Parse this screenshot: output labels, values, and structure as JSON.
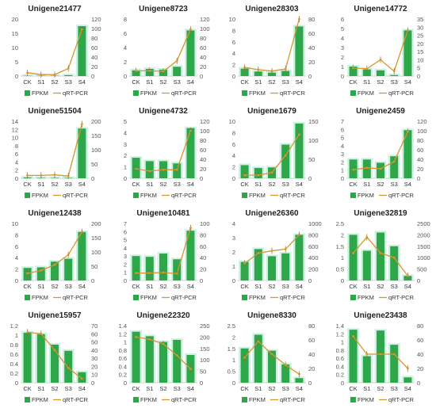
{
  "colors": {
    "bar": "#2ea64a",
    "bar_glow": "#c7eedd",
    "line": "#d9952e"
  },
  "legend": {
    "bar_label": "FPKM",
    "line_label": "qRT-PCR"
  },
  "chart_data": [
    {
      "type": "bar+line",
      "title": "Unigene21477",
      "categories": [
        "CK",
        "S1",
        "S2",
        "S3",
        "S4"
      ],
      "series": [
        {
          "name": "FPKM",
          "axis": "left",
          "values": [
            0.1,
            0.1,
            0.1,
            0.3,
            17.5
          ]
        },
        {
          "name": "qRT-PCR",
          "axis": "right",
          "values": [
            7,
            3,
            3,
            16,
            98
          ]
        }
      ],
      "left_ylim": [
        0,
        20
      ],
      "left_ticks": [
        0,
        5,
        10,
        15,
        20
      ],
      "right_ylim": [
        0,
        120
      ],
      "right_ticks": [
        0,
        20,
        40,
        60,
        80,
        100,
        120
      ]
    },
    {
      "type": "bar+line",
      "title": "Unigene8723",
      "categories": [
        "CK",
        "S1",
        "S2",
        "S3",
        "S4"
      ],
      "series": [
        {
          "name": "FPKM",
          "axis": "left",
          "values": [
            0.8,
            1.0,
            0.9,
            1.3,
            6.4
          ]
        },
        {
          "name": "qRT-PCR",
          "axis": "right",
          "values": [
            11,
            11,
            10,
            32,
            98
          ]
        }
      ],
      "left_ylim": [
        0,
        8
      ],
      "left_ticks": [
        0,
        2,
        4,
        6,
        8
      ],
      "right_ylim": [
        0,
        120
      ],
      "right_ticks": [
        0,
        20,
        40,
        60,
        80,
        100,
        120
      ]
    },
    {
      "type": "bar+line",
      "title": "Unigene28303",
      "categories": [
        "CK",
        "S1",
        "S2",
        "S3",
        "S4"
      ],
      "series": [
        {
          "name": "FPKM",
          "axis": "left",
          "values": [
            1.3,
            0.8,
            0.6,
            0.9,
            8.7
          ]
        },
        {
          "name": "qRT-PCR",
          "axis": "right",
          "values": [
            12,
            9,
            7,
            10,
            80
          ]
        }
      ],
      "left_ylim": [
        0,
        10
      ],
      "left_ticks": [
        0,
        2,
        4,
        6,
        8,
        10
      ],
      "right_ylim": [
        0,
        80
      ],
      "right_ticks": [
        0,
        20,
        40,
        60,
        80
      ]
    },
    {
      "type": "bar+line",
      "title": "Unigene14772",
      "categories": [
        "CK",
        "S1",
        "S2",
        "S3",
        "S4"
      ],
      "series": [
        {
          "name": "FPKM",
          "axis": "left",
          "values": [
            1.0,
            0.7,
            0.6,
            0.1,
            4.8
          ]
        },
        {
          "name": "qRT-PCR",
          "axis": "right",
          "values": [
            5,
            4.5,
            10,
            3,
            28
          ]
        }
      ],
      "left_ylim": [
        0,
        6
      ],
      "left_ticks": [
        0,
        1,
        2,
        3,
        4,
        5,
        6
      ],
      "right_ylim": [
        0,
        35
      ],
      "right_ticks": [
        0,
        5,
        10,
        15,
        20,
        25,
        30,
        35
      ]
    },
    {
      "type": "bar+line",
      "title": "Unigene51504",
      "categories": [
        "CK",
        "S1",
        "S2",
        "S3",
        "S4"
      ],
      "series": [
        {
          "name": "FPKM",
          "axis": "left",
          "values": [
            0.2,
            0.1,
            0.1,
            0.1,
            12.2
          ]
        },
        {
          "name": "qRT-PCR",
          "axis": "right",
          "values": [
            10,
            10,
            12,
            8,
            190
          ]
        }
      ],
      "left_ylim": [
        0,
        14
      ],
      "left_ticks": [
        0,
        2,
        4,
        6,
        8,
        10,
        12,
        14
      ],
      "right_ylim": [
        0,
        200
      ],
      "right_ticks": [
        0,
        50,
        100,
        150,
        200
      ]
    },
    {
      "type": "bar+line",
      "title": "Unigene4732",
      "categories": [
        "CK",
        "S1",
        "S2",
        "S3",
        "S4"
      ],
      "series": [
        {
          "name": "FPKM",
          "axis": "left",
          "values": [
            1.8,
            1.5,
            1.5,
            1.3,
            4.4
          ]
        },
        {
          "name": "qRT-PCR",
          "axis": "right",
          "values": [
            20,
            15,
            18,
            18,
            100
          ]
        }
      ],
      "left_ylim": [
        0,
        5
      ],
      "left_ticks": [
        0,
        1,
        2,
        3,
        4,
        5
      ],
      "right_ylim": [
        0,
        120
      ],
      "right_ticks": [
        0,
        20,
        40,
        60,
        80,
        100,
        120
      ]
    },
    {
      "type": "bar+line",
      "title": "Unigene1679",
      "categories": [
        "CK",
        "S1",
        "S2",
        "S3",
        "S4"
      ],
      "series": [
        {
          "name": "FPKM",
          "axis": "left",
          "values": [
            2.3,
            1.8,
            1.9,
            5.9,
            9.6
          ]
        },
        {
          "name": "qRT-PCR",
          "axis": "right",
          "values": [
            8,
            8,
            15,
            60,
            115
          ]
        }
      ],
      "left_ylim": [
        0,
        10
      ],
      "left_ticks": [
        0,
        2,
        4,
        6,
        8,
        10
      ],
      "right_ylim": [
        0,
        150
      ],
      "right_ticks": [
        0,
        50,
        100,
        150
      ]
    },
    {
      "type": "bar+line",
      "title": "Unigene2459",
      "categories": [
        "CK",
        "S1",
        "S2",
        "S3",
        "S4"
      ],
      "series": [
        {
          "name": "FPKM",
          "axis": "left",
          "values": [
            2.3,
            2.3,
            1.9,
            2.7,
            5.9
          ]
        },
        {
          "name": "qRT-PCR",
          "axis": "right",
          "values": [
            18,
            22,
            20,
            35,
            98
          ]
        }
      ],
      "left_ylim": [
        0,
        7
      ],
      "left_ticks": [
        0,
        1,
        2,
        3,
        4,
        5,
        6,
        7
      ],
      "right_ylim": [
        0,
        120
      ],
      "right_ticks": [
        0,
        20,
        40,
        60,
        80,
        100,
        120
      ]
    },
    {
      "type": "bar+line",
      "title": "Unigene12438",
      "categories": [
        "CK",
        "S1",
        "S2",
        "S3",
        "S4"
      ],
      "series": [
        {
          "name": "FPKM",
          "axis": "left",
          "values": [
            2.2,
            2.3,
            3.3,
            3.8,
            8.5
          ]
        },
        {
          "name": "qRT-PCR",
          "axis": "right",
          "values": [
            25,
            35,
            55,
            90,
            170
          ]
        }
      ],
      "left_ylim": [
        0,
        10
      ],
      "left_ticks": [
        0,
        2,
        4,
        6,
        8,
        10
      ],
      "right_ylim": [
        0,
        200
      ],
      "right_ticks": [
        0,
        50,
        100,
        150,
        200
      ]
    },
    {
      "type": "bar+line",
      "title": "Unigene10481",
      "categories": [
        "CK",
        "S1",
        "S2",
        "S3",
        "S4"
      ],
      "series": [
        {
          "name": "FPKM",
          "axis": "left",
          "values": [
            3.0,
            2.9,
            3.3,
            2.6,
            6.1
          ]
        },
        {
          "name": "qRT-PCR",
          "axis": "right",
          "values": [
            13,
            13,
            14,
            12,
            92
          ]
        }
      ],
      "left_ylim": [
        0,
        7
      ],
      "left_ticks": [
        0,
        1,
        2,
        3,
        4,
        5,
        6,
        7
      ],
      "right_ylim": [
        0,
        100
      ],
      "right_ticks": [
        0,
        20,
        40,
        60,
        80,
        100
      ]
    },
    {
      "type": "bar+line",
      "title": "Unigene26360",
      "categories": [
        "CK",
        "S1",
        "S2",
        "S3",
        "S4"
      ],
      "series": [
        {
          "name": "FPKM",
          "axis": "left",
          "values": [
            1.3,
            2.2,
            1.7,
            1.9,
            3.2
          ]
        },
        {
          "name": "qRT-PCR",
          "axis": "right",
          "values": [
            300,
            480,
            520,
            550,
            800
          ]
        }
      ],
      "left_ylim": [
        0,
        4
      ],
      "left_ticks": [
        0,
        1,
        2,
        3,
        4
      ],
      "right_ylim": [
        0,
        1000
      ],
      "right_ticks": [
        0,
        200,
        400,
        600,
        800,
        1000
      ]
    },
    {
      "type": "bar+line",
      "title": "Unigene32819",
      "categories": [
        "CK",
        "S1",
        "S2",
        "S3",
        "S4"
      ],
      "series": [
        {
          "name": "FPKM",
          "axis": "left",
          "values": [
            2.0,
            1.3,
            2.1,
            1.5,
            0.2
          ]
        },
        {
          "name": "qRT-PCR",
          "axis": "right",
          "values": [
            1200,
            1900,
            1200,
            1000,
            200
          ]
        }
      ],
      "left_ylim": [
        0,
        2.5
      ],
      "left_ticks": [
        0,
        0.5,
        1,
        1.5,
        2,
        2.5
      ],
      "right_ylim": [
        0,
        2500
      ],
      "right_ticks": [
        0,
        500,
        1000,
        1500,
        2000,
        2500
      ]
    },
    {
      "type": "bar+line",
      "title": "Unigene15957",
      "categories": [
        "CK",
        "S1",
        "S2",
        "S3",
        "S4"
      ],
      "series": [
        {
          "name": "FPKM",
          "axis": "left",
          "values": [
            1.05,
            1.02,
            0.8,
            0.67,
            0.22
          ]
        },
        {
          "name": "qRT-PCR",
          "axis": "right",
          "values": [
            62,
            60,
            40,
            18,
            5
          ]
        }
      ],
      "left_ylim": [
        0,
        1.2
      ],
      "left_ticks": [
        0,
        0.2,
        0.4,
        0.6,
        0.8,
        1,
        1.2
      ],
      "right_ylim": [
        0,
        70
      ],
      "right_ticks": [
        0,
        10,
        20,
        30,
        40,
        50,
        60,
        70
      ]
    },
    {
      "type": "bar+line",
      "title": "Unigene22320",
      "categories": [
        "CK",
        "S1",
        "S2",
        "S3",
        "S4"
      ],
      "series": [
        {
          "name": "FPKM",
          "axis": "left",
          "values": [
            1.25,
            1.14,
            1.0,
            1.05,
            0.68
          ]
        },
        {
          "name": "qRT-PCR",
          "axis": "right",
          "values": [
            200,
            190,
            170,
            120,
            60
          ]
        }
      ],
      "left_ylim": [
        0,
        1.4
      ],
      "left_ticks": [
        0,
        0.2,
        0.4,
        0.6,
        0.8,
        1,
        1.2,
        1.4
      ],
      "right_ylim": [
        0,
        250
      ],
      "right_ticks": [
        0,
        50,
        100,
        150,
        200,
        250
      ]
    },
    {
      "type": "bar+line",
      "title": "Unigene8330",
      "categories": [
        "CK",
        "S1",
        "S2",
        "S3",
        "S4"
      ],
      "series": [
        {
          "name": "FPKM",
          "axis": "left",
          "values": [
            1.5,
            2.1,
            1.4,
            0.8,
            0.2
          ]
        },
        {
          "name": "qRT-PCR",
          "axis": "right",
          "values": [
            35,
            58,
            40,
            25,
            12
          ]
        }
      ],
      "left_ylim": [
        0,
        2.5
      ],
      "left_ticks": [
        0,
        0.5,
        1,
        1.5,
        2,
        2.5
      ],
      "right_ylim": [
        0,
        80
      ],
      "right_ticks": [
        0,
        20,
        40,
        60,
        80
      ]
    },
    {
      "type": "bar+line",
      "title": "Unigene23438",
      "categories": [
        "CK",
        "S1",
        "S2",
        "S3",
        "S4"
      ],
      "series": [
        {
          "name": "FPKM",
          "axis": "left",
          "values": [
            1.3,
            0.65,
            1.28,
            0.93,
            0.13
          ]
        },
        {
          "name": "qRT-PCR",
          "axis": "right",
          "values": [
            65,
            40,
            40,
            40,
            20
          ]
        }
      ],
      "left_ylim": [
        0,
        1.4
      ],
      "left_ticks": [
        0,
        0.2,
        0.4,
        0.6,
        0.8,
        1,
        1.2,
        1.4
      ],
      "right_ylim": [
        0,
        80
      ],
      "right_ticks": [
        0,
        20,
        40,
        60,
        80
      ]
    }
  ]
}
